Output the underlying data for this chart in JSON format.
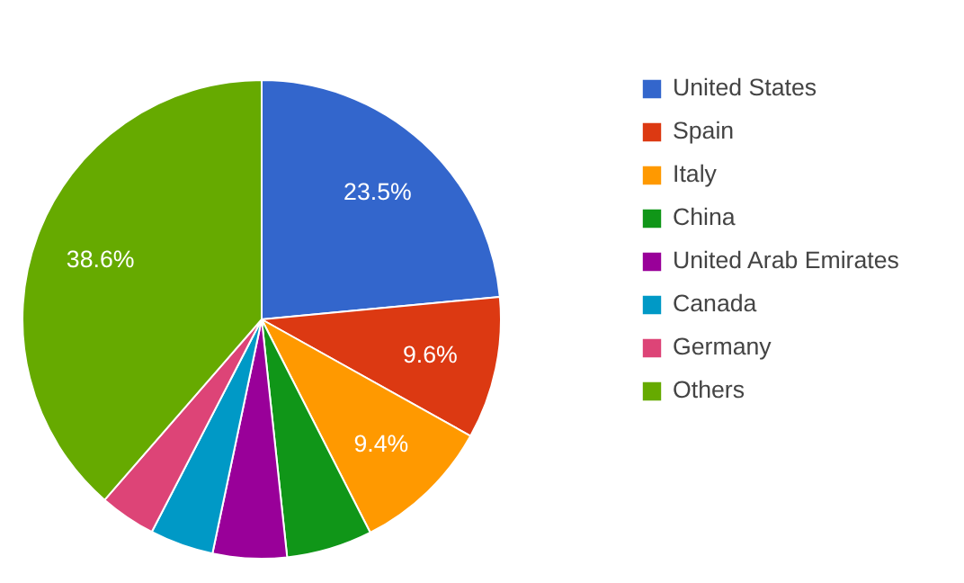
{
  "chart_data": {
    "type": "pie",
    "categories": [
      "United States",
      "Spain",
      "Italy",
      "China",
      "United Arab Emirates",
      "Canada",
      "Germany",
      "Others"
    ],
    "values": [
      23.5,
      9.6,
      9.4,
      5.8,
      5.0,
      4.3,
      3.8,
      38.6
    ],
    "colors": [
      "#3366cc",
      "#dc3912",
      "#ff9900",
      "#109618",
      "#990099",
      "#0099c6",
      "#dd4477",
      "#66aa00"
    ],
    "value_labels": [
      "23.5%",
      "9.6%",
      "9.4%",
      null,
      null,
      null,
      null,
      "38.6%"
    ],
    "legend": "right"
  }
}
